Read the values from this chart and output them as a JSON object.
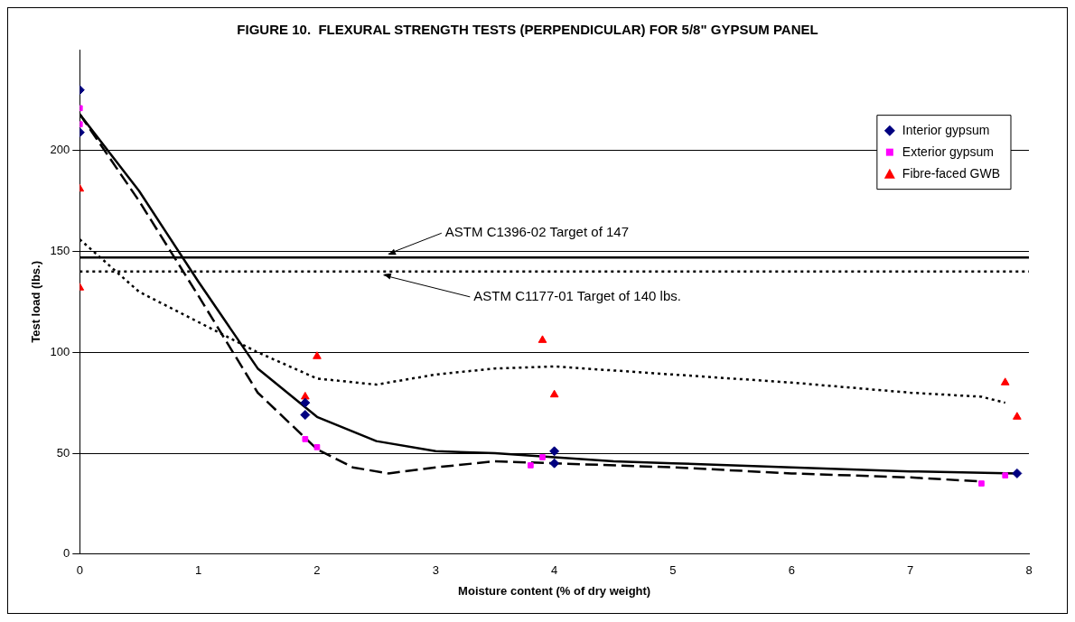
{
  "chart_data": {
    "type": "scatter",
    "title": "FIGURE 10.  FLEXURAL STRENGTH TESTS (PERPENDICULAR) FOR 5/8\" GYPSUM PANEL",
    "xlabel": "Moisture content (% of dry weight)",
    "ylabel": "Test load (lbs.)",
    "xlim": [
      0,
      8
    ],
    "xticks": [
      0,
      1,
      2,
      3,
      4,
      5,
      6,
      7,
      8
    ],
    "ylim": [
      0,
      250
    ],
    "yticks": [
      0,
      50,
      100,
      150,
      200
    ],
    "grid": "y",
    "legend": "top right",
    "series": [
      {
        "name": "Interior gypsum",
        "color": "#000080",
        "marker": "diamond",
        "x": [
          0,
          0,
          1.9,
          1.9,
          4,
          4,
          7.9
        ],
        "values": [
          230,
          209,
          75,
          69,
          51,
          45,
          40
        ]
      },
      {
        "name": "Exterior gypsum",
        "color": "#ff00ff",
        "marker": "square",
        "x": [
          0,
          0,
          1.9,
          2,
          3.8,
          3.9,
          7.6,
          7.8
        ],
        "values": [
          221,
          213,
          57,
          53,
          44,
          48,
          35,
          39
        ]
      },
      {
        "name": "Fibre-faced GWB",
        "color": "#ff0000",
        "marker": "triangle",
        "x": [
          0,
          0,
          1.9,
          2,
          3.9,
          4,
          7.8,
          7.9
        ],
        "values": [
          181,
          132,
          78,
          98,
          106,
          79,
          85,
          68
        ]
      },
      {
        "type": "line",
        "color": "#000000",
        "marker": "none",
        "line_style": "solid",
        "x": [
          0,
          0.5,
          1,
          1.5,
          2,
          2.5,
          3,
          3.5,
          4,
          4.5,
          5,
          6,
          7,
          7.9
        ],
        "values": [
          218,
          180,
          135,
          92,
          68,
          56,
          51,
          50,
          48,
          46,
          45,
          43,
          41,
          40
        ]
      },
      {
        "type": "line",
        "color": "#000000",
        "marker": "none",
        "line_style": "dashed",
        "x": [
          0,
          0.5,
          1,
          1.5,
          2,
          2.3,
          2.6,
          3,
          3.5,
          4,
          5,
          6,
          7,
          7.6
        ],
        "values": [
          218,
          175,
          128,
          80,
          52,
          43,
          40,
          43,
          46,
          45,
          43,
          40,
          38,
          36
        ]
      },
      {
        "type": "line",
        "color": "#000000",
        "marker": "none",
        "line_style": "dotted",
        "x": [
          0,
          0.5,
          1,
          1.5,
          2,
          2.5,
          3,
          3.5,
          4,
          4.5,
          5,
          6,
          7,
          7.6,
          7.8
        ],
        "values": [
          156,
          130,
          115,
          100,
          87,
          84,
          89,
          92,
          93,
          91,
          89,
          85,
          80,
          78,
          75
        ]
      }
    ],
    "ref_lines": [
      {
        "axis": "y",
        "value": 147,
        "label": "ASTM C1396-02 Target of 147",
        "color": "#000000",
        "line_style": "solid"
      },
      {
        "axis": "y",
        "value": 140,
        "label": "ASTM C1177-01 Target of 140 lbs.",
        "color": "#000000",
        "line_style": "dotted"
      }
    ]
  }
}
